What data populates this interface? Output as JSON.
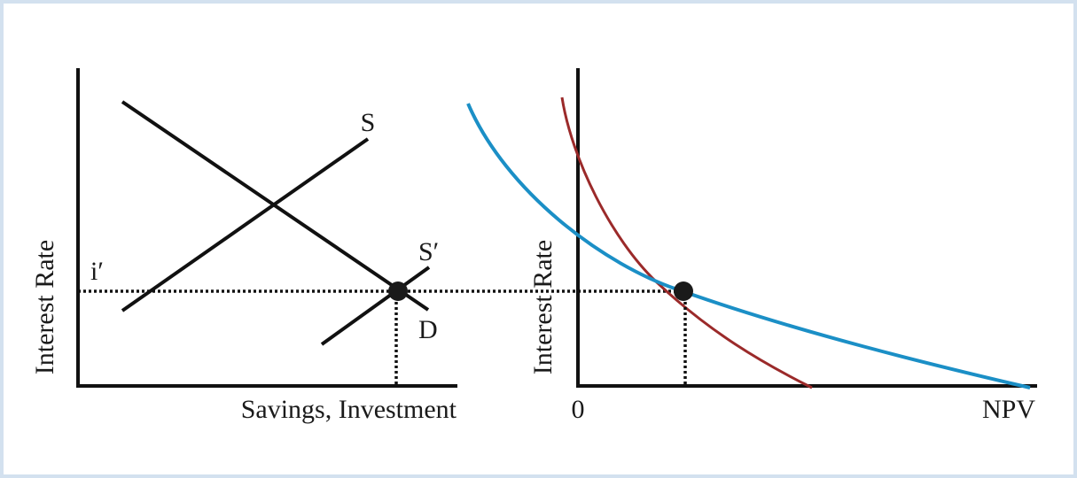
{
  "left_panel": {
    "y_axis_label": "Interest Rate",
    "x_axis_label": "Savings, Investment",
    "rate_label": "i′",
    "curves": {
      "supply": "S",
      "new_supply": "S′",
      "demand": "D"
    }
  },
  "right_panel": {
    "y_axis_label": "Interest Rate",
    "origin_label": "0",
    "x_axis_label": "NPV"
  }
}
